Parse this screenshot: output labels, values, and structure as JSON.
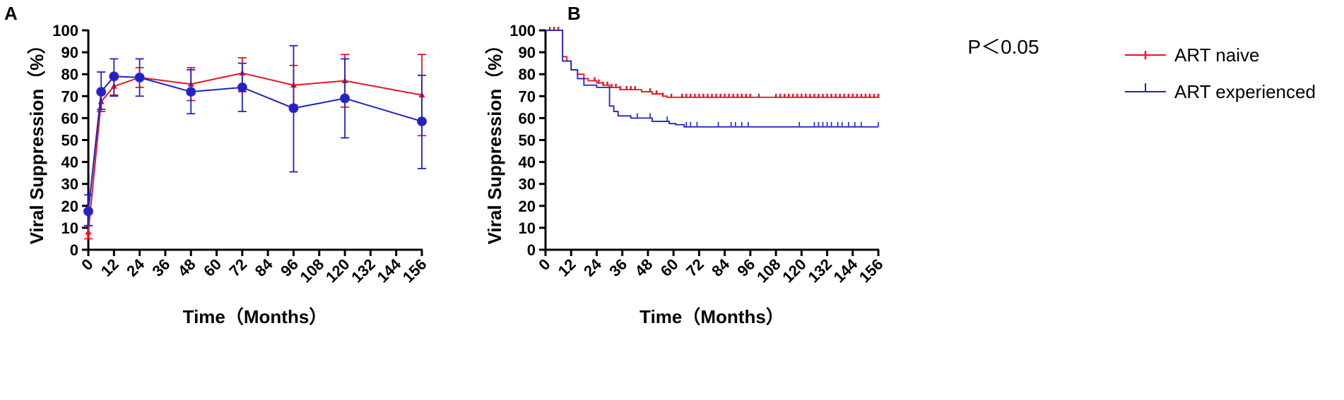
{
  "colors": {
    "naive": "#e8141c",
    "experienced": "#1e22c8",
    "axis": "#000000"
  },
  "chart_data": [
    {
      "panel": "A",
      "type": "line",
      "ylabel": "Viral Suppression（%）",
      "xlabel": "Time（Months）",
      "ylim": [
        0,
        100
      ],
      "yticks": [
        0,
        10,
        20,
        30,
        40,
        50,
        60,
        70,
        80,
        90,
        100
      ],
      "xlim": [
        0,
        156
      ],
      "xticks": [
        0,
        12,
        24,
        36,
        48,
        60,
        72,
        84,
        96,
        108,
        120,
        132,
        144,
        156
      ],
      "series": [
        {
          "name": "ART naive",
          "color": "#e8141c",
          "marker": "triangle",
          "x": [
            0,
            6,
            12,
            24,
            48,
            72,
            96,
            120,
            156
          ],
          "y": [
            8,
            67.5,
            74.5,
            78.5,
            75.5,
            80.5,
            75,
            77,
            70.5
          ],
          "err_low": [
            5,
            63,
            70.5,
            74,
            68,
            72,
            66,
            65,
            52
          ],
          "err_high": [
            11,
            72,
            79,
            83,
            83,
            87.5,
            84,
            89,
            89
          ]
        },
        {
          "name": "ART experienced",
          "color": "#1e22c8",
          "marker": "circle",
          "x": [
            0,
            6,
            12,
            24,
            48,
            72,
            96,
            120,
            156
          ],
          "y": [
            17.5,
            72,
            79,
            78.5,
            72,
            74,
            64.5,
            69,
            58.5
          ],
          "err_low": [
            11,
            64,
            70,
            70,
            62,
            63,
            35.5,
            51,
            37
          ],
          "err_high": [
            25,
            81,
            87,
            87,
            82,
            85,
            93,
            87,
            79.5
          ]
        }
      ]
    },
    {
      "panel": "B",
      "type": "line",
      "subtype": "kaplan-meier",
      "ylabel": "Viral Suppression（%）",
      "xlabel": "Time（Months）",
      "ylim": [
        0,
        100
      ],
      "yticks": [
        0,
        10,
        20,
        30,
        40,
        50,
        60,
        70,
        80,
        90,
        100
      ],
      "xlim": [
        0,
        156
      ],
      "xticks": [
        0,
        12,
        24,
        36,
        48,
        60,
        72,
        84,
        96,
        108,
        120,
        132,
        144,
        156
      ],
      "annotation": "P＜0.05",
      "legend_position": "right",
      "series": [
        {
          "name": "ART naive",
          "color": "#e8141c",
          "steps": [
            [
              0,
              100
            ],
            [
              8,
              100
            ],
            [
              8,
              88
            ],
            [
              10,
              88
            ],
            [
              10,
              86
            ],
            [
              12,
              86
            ],
            [
              12,
              82
            ],
            [
              15,
              82
            ],
            [
              15,
              80
            ],
            [
              18,
              80
            ],
            [
              18,
              78
            ],
            [
              20,
              78
            ],
            [
              20,
              77
            ],
            [
              24,
              77
            ],
            [
              24,
              76
            ],
            [
              27,
              76
            ],
            [
              27,
              75
            ],
            [
              30,
              75
            ],
            [
              30,
              74
            ],
            [
              35,
              74
            ],
            [
              35,
              73
            ],
            [
              45,
              73
            ],
            [
              45,
              72
            ],
            [
              50,
              72
            ],
            [
              50,
              71
            ],
            [
              55,
              71
            ],
            [
              55,
              70
            ],
            [
              57,
              70
            ],
            [
              57,
              69.5
            ],
            [
              156,
              69.5
            ]
          ],
          "censored": [
            2,
            4,
            6,
            23,
            25,
            27,
            29,
            31,
            33,
            35,
            38,
            40,
            42,
            49,
            52,
            55,
            59,
            64,
            66,
            68,
            70,
            72,
            74,
            76,
            78,
            80,
            82,
            84,
            86,
            88,
            90,
            92,
            94,
            96,
            100,
            108,
            110,
            112,
            114,
            116,
            118,
            120,
            122,
            124,
            126,
            128,
            130,
            132,
            134,
            136,
            138,
            140,
            142,
            144,
            146,
            148,
            150,
            152,
            154,
            156
          ]
        },
        {
          "name": "ART experienced",
          "color": "#1e22c8",
          "steps": [
            [
              0,
              100
            ],
            [
              8,
              100
            ],
            [
              8,
              86
            ],
            [
              12,
              86
            ],
            [
              12,
              82
            ],
            [
              15,
              82
            ],
            [
              15,
              78
            ],
            [
              18,
              78
            ],
            [
              18,
              75
            ],
            [
              24,
              75
            ],
            [
              24,
              74
            ],
            [
              30,
              74
            ],
            [
              30,
              65.5
            ],
            [
              32,
              65.5
            ],
            [
              32,
              63
            ],
            [
              34,
              63
            ],
            [
              34,
              61
            ],
            [
              40,
              61
            ],
            [
              40,
              60
            ],
            [
              50,
              60
            ],
            [
              50,
              58.5
            ],
            [
              58,
              58.5
            ],
            [
              58,
              57.5
            ],
            [
              61,
              57.5
            ],
            [
              61,
              57
            ],
            [
              65,
              57
            ],
            [
              65,
              56
            ],
            [
              156,
              56
            ]
          ],
          "censored": [
            43,
            49,
            57,
            66,
            68,
            71,
            81,
            87,
            89,
            92,
            95,
            119,
            126,
            128,
            130,
            132,
            134,
            137,
            139,
            142,
            145,
            148,
            156
          ]
        }
      ]
    }
  ],
  "panels": {
    "a": {
      "label": "A"
    },
    "b": {
      "label": "B"
    }
  },
  "legend": {
    "items": [
      "ART naive",
      "ART experienced"
    ]
  }
}
